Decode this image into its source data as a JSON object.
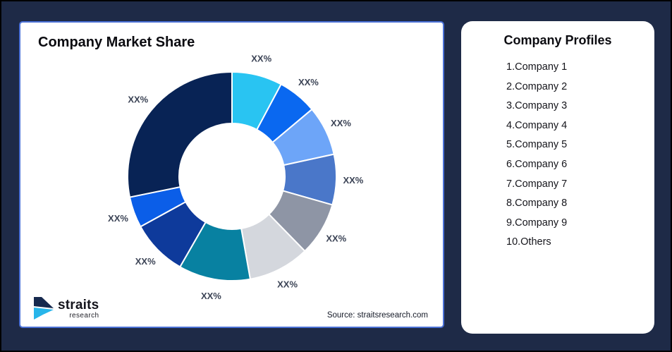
{
  "left_card": {
    "title": "Company Market Share",
    "source": "Source: straitsresearch.com",
    "logo": {
      "brand": "straits",
      "sub": "research"
    }
  },
  "right_card": {
    "title": "Company Profiles",
    "items": [
      "1.Company 1",
      "2.Company 2",
      "3.Company 3",
      "4.Company 4",
      "5.Company 5",
      "6.Company 6",
      "7.Company 7",
      "8.Company 8",
      "9.Company 9",
      "10.Others"
    ]
  },
  "chart_data": {
    "type": "pie",
    "variant": "donut",
    "title": "Company Market Share",
    "direction": "clockwise",
    "start_angle_deg": 0,
    "inner_radius_ratio": 0.51,
    "legend_position": "none",
    "slices": [
      {
        "name": "Company 1",
        "value": 7.8,
        "label": "XX%",
        "color": "#29C4F2"
      },
      {
        "name": "Company 2",
        "value": 6.1,
        "label": "XX%",
        "color": "#0A68F0"
      },
      {
        "name": "Company 3",
        "value": 7.7,
        "label": "XX%",
        "color": "#6DA5F8"
      },
      {
        "name": "Company 4",
        "value": 7.8,
        "label": "XX%",
        "color": "#4A77C9"
      },
      {
        "name": "Company 5",
        "value": 8.3,
        "label": "XX%",
        "color": "#8E95A5"
      },
      {
        "name": "Company 6",
        "value": 9.5,
        "label": "XX%",
        "color": "#D4D7DD"
      },
      {
        "name": "Company 7",
        "value": 11.1,
        "label": "XX%",
        "color": "#0881A1"
      },
      {
        "name": "Company 8",
        "value": 8.7,
        "label": "XX%",
        "color": "#0E3A9B"
      },
      {
        "name": "Company 9",
        "value": 4.8,
        "label": "XX%",
        "color": "#0B5EE8"
      },
      {
        "name": "Others",
        "value": 28.2,
        "label": "XX%",
        "color": "#082355"
      }
    ]
  },
  "colors": {
    "background": "#1E2A47",
    "card": "#FFFFFF",
    "left_card_border": "#4A70D6",
    "slice_label_text": "#3C4456",
    "logo_navy": "#16294E",
    "logo_cyan": "#27B5EA"
  }
}
